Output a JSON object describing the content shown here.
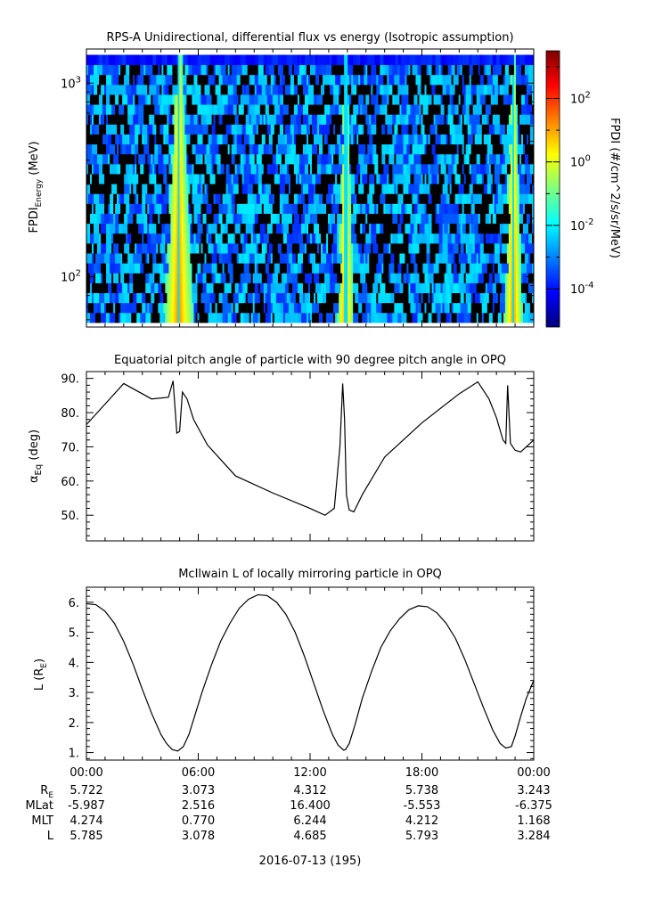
{
  "chart_data": [
    {
      "type": "heatmap",
      "title": "RPS-A Unidirectional, differential flux vs energy (Isotropic assumption)",
      "ylabel_main": "FPDI",
      "ylabel_sub": "Energy",
      "ylabel_unit": "(MeV)",
      "yscale": "log",
      "ylim": [
        55,
        1500
      ],
      "y_ticks": [
        100,
        1000
      ],
      "y_tick_labels": [
        {
          "base": "10",
          "exp": "2"
        },
        {
          "base": "10",
          "exp": "3"
        }
      ],
      "energy_range_mev": [
        58,
        1400
      ],
      "energy_channel_count": 27,
      "bright_bands_hours": [
        {
          "center": 4.9,
          "width_hours": 1.6,
          "peak_log_flux": 1.3
        },
        {
          "center": 13.85,
          "width_hours": 0.9,
          "peak_log_flux": 1.3
        },
        {
          "center": 22.85,
          "width_hours": 1.0,
          "peak_log_flux": 1.3
        }
      ],
      "colorbar": {
        "label": "FPDI (#/cm^2/s/sr/MeV)",
        "scale": "log",
        "range_log10": [
          -5.2,
          3.5
        ],
        "tick_labels": [
          {
            "base": "10",
            "exp": "2",
            "log": 2
          },
          {
            "base": "10",
            "exp": "0",
            "log": 0
          },
          {
            "base": "10",
            "exp": "-2",
            "log": -2
          },
          {
            "base": "10",
            "exp": "-4",
            "log": -4
          }
        ],
        "colors": [
          "#00007f",
          "#0000ff",
          "#007fff",
          "#00ffff",
          "#7fff7f",
          "#ffff00",
          "#ff7f00",
          "#ff0000",
          "#7f0000"
        ]
      }
    },
    {
      "type": "line",
      "title": "Equatorial pitch angle of particle with 90 degree pitch angle in OPQ",
      "ylabel": "α",
      "ylabel_sub": "Eq",
      "ylabel_unit": "(deg)",
      "ylim": [
        42.5,
        92
      ],
      "y_ticks": [
        50,
        60,
        70,
        80,
        90
      ],
      "y_tick_labels": [
        "50.",
        "60.",
        "70.",
        "80.",
        "90."
      ],
      "x_hours": [
        0,
        2.0,
        3.5,
        4.4,
        4.65,
        4.85,
        5.0,
        5.15,
        5.4,
        5.75,
        6.5,
        8.0,
        10.0,
        12.0,
        12.8,
        13.3,
        13.6,
        13.75,
        13.85,
        13.95,
        14.1,
        14.35,
        14.8,
        16.0,
        18.0,
        20.0,
        21.0,
        21.6,
        22.0,
        22.35,
        22.5,
        22.6,
        22.75,
        23.0,
        23.3,
        24.0
      ],
      "y_values": [
        76.5,
        88.5,
        84.0,
        84.5,
        89.3,
        74.0,
        74.5,
        86.0,
        84.0,
        78.0,
        70.5,
        61.5,
        56.5,
        52.0,
        50.0,
        52.0,
        70.0,
        88.5,
        78.0,
        56.0,
        51.5,
        51.0,
        56.0,
        67.0,
        77.0,
        85.5,
        89.0,
        84.0,
        78.5,
        72.0,
        71.0,
        88.0,
        71.0,
        69.0,
        68.5,
        72.0
      ]
    },
    {
      "type": "line",
      "title": "McIlwain L of locally mirroring particle in OPQ",
      "ylabel": "L",
      "ylabel_unit_base": "R",
      "ylabel_unit_sub": "E",
      "ylim": [
        0.75,
        6.5
      ],
      "y_ticks": [
        1,
        2,
        3,
        4,
        5,
        6
      ],
      "y_tick_labels": [
        "1.",
        "2.",
        "3.",
        "4.",
        "5.",
        "6."
      ],
      "x_hours": [
        0,
        0.5,
        1.0,
        1.5,
        2.0,
        2.5,
        3.0,
        3.5,
        4.0,
        4.3,
        4.6,
        4.9,
        5.2,
        5.5,
        5.8,
        6.2,
        6.7,
        7.2,
        7.7,
        8.2,
        8.7,
        9.2,
        9.7,
        10.2,
        10.7,
        11.2,
        11.7,
        12.2,
        12.7,
        13.2,
        13.5,
        13.8,
        13.9,
        14.1,
        14.4,
        14.8,
        15.3,
        15.8,
        16.3,
        16.8,
        17.3,
        17.8,
        18.3,
        18.8,
        19.3,
        19.8,
        20.3,
        20.8,
        21.3,
        21.8,
        22.2,
        22.5,
        22.8,
        23.0,
        23.3,
        23.6,
        24.0
      ],
      "y_values": [
        5.95,
        5.92,
        5.7,
        5.3,
        4.7,
        3.95,
        3.1,
        2.3,
        1.6,
        1.3,
        1.1,
        1.05,
        1.2,
        1.6,
        2.2,
        3.0,
        3.9,
        4.7,
        5.3,
        5.8,
        6.1,
        6.25,
        6.22,
        6.0,
        5.6,
        5.0,
        4.2,
        3.3,
        2.4,
        1.6,
        1.25,
        1.08,
        1.1,
        1.3,
        1.9,
        2.8,
        3.7,
        4.5,
        5.05,
        5.45,
        5.75,
        5.88,
        5.85,
        5.65,
        5.3,
        4.8,
        4.1,
        3.3,
        2.5,
        1.75,
        1.3,
        1.15,
        1.2,
        1.55,
        2.2,
        2.8,
        3.4
      ]
    }
  ],
  "xaxis": {
    "range_hours": [
      0,
      24
    ],
    "tick_hours": [
      0,
      6,
      12,
      18,
      24
    ],
    "tick_labels": [
      "00:00",
      "06:00",
      "12:00",
      "18:00",
      "00:00"
    ],
    "date_label": "2016-07-13 (195)"
  },
  "ephemeris": {
    "rows": [
      {
        "label_base": "R",
        "label_sub": "E",
        "values": [
          "5.722",
          "3.073",
          "4.312",
          "5.738",
          "3.243"
        ]
      },
      {
        "label_base": "MLat",
        "label_sub": "",
        "values": [
          "-5.987",
          "2.516",
          "16.400",
          "-5.553",
          "-6.375"
        ]
      },
      {
        "label_base": "MLT",
        "label_sub": "",
        "values": [
          "4.274",
          "0.770",
          "6.244",
          "4.212",
          "1.168"
        ]
      },
      {
        "label_base": "L",
        "label_sub": "",
        "values": [
          "5.785",
          "3.078",
          "4.685",
          "5.793",
          "3.284"
        ]
      }
    ]
  }
}
